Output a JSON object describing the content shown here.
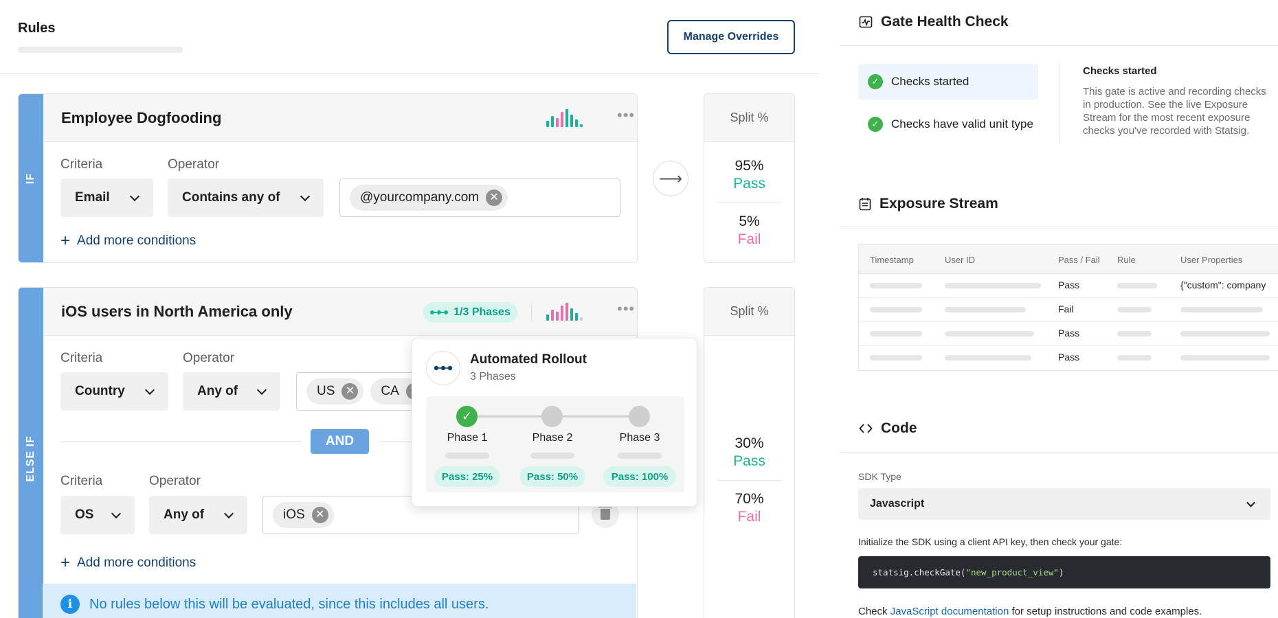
{
  "rules": {
    "title": "Rules",
    "manage_overrides_label": "Manage Overrides"
  },
  "rule1": {
    "strip_label": "IF",
    "name": "Employee Dogfooding",
    "criteria_label": "Criteria",
    "operator_label": "Operator",
    "criteria_value": "Email",
    "operator_value": "Contains any of",
    "values": [
      "@yourcompany.com"
    ],
    "add_conditions": "Add more conditions",
    "split": {
      "header": "Split %",
      "pass_percent": "95%",
      "pass_label": "Pass",
      "fail_percent": "5%",
      "fail_label": "Fail"
    }
  },
  "rule2": {
    "strip_label": "ELSE IF",
    "name": "iOS users in North America only",
    "phases_pill": "1/3 Phases",
    "condition1": {
      "criteria_label": "Criteria",
      "operator_label": "Operator",
      "criteria_value": "Country",
      "operator_value": "Any of",
      "values": [
        "US",
        "CA"
      ]
    },
    "and_label": "AND",
    "condition2": {
      "criteria_label": "Criteria",
      "operator_label": "Operator",
      "criteria_value": "OS",
      "operator_value": "Any of",
      "values": [
        "iOS"
      ]
    },
    "add_conditions": "Add more conditions",
    "info_text": "No rules below this will be evaluated, since this includes all users.",
    "split": {
      "header": "Split %",
      "pass_percent": "30%",
      "pass_label": "Pass",
      "fail_percent": "70%",
      "fail_label": "Fail"
    }
  },
  "rollout_popover": {
    "title": "Automated Rollout",
    "subtitle": "3 Phases",
    "completed_phases": 1,
    "phases": [
      {
        "name": "Phase 1",
        "pass": "Pass: 25%",
        "done": true
      },
      {
        "name": "Phase 2",
        "pass": "Pass: 50%",
        "done": false
      },
      {
        "name": "Phase 3",
        "pass": "Pass: 100%",
        "done": false
      }
    ]
  },
  "health": {
    "title": "Gate Health Check",
    "checks": [
      {
        "label": "Checks started",
        "active": true
      },
      {
        "label": "Checks have valid unit type",
        "active": false
      }
    ],
    "detail_title": "Checks started",
    "detail_desc": "This gate is active and recording checks in production. See the live Exposure Stream for the most recent exposure checks you've recorded with Statsig."
  },
  "exposure": {
    "title": "Exposure Stream",
    "columns": [
      "Timestamp",
      "User ID",
      "Pass / Fail",
      "Rule",
      "User Properties"
    ],
    "rows": [
      {
        "result": "Pass",
        "props": "{\"custom\": company"
      },
      {
        "result": "Fail",
        "props": ""
      },
      {
        "result": "Pass",
        "props": ""
      },
      {
        "result": "Pass",
        "props": ""
      }
    ]
  },
  "code": {
    "title": "Code",
    "sdk_label": "SDK Type",
    "sdk_value": "Javascript",
    "init_text": "Initialize the SDK using a client API key, then check your gate:",
    "code_fn": "statsig.checkGate(",
    "code_arg": "\"new_product_view\"",
    "code_end": ")",
    "doc_prefix": "Check ",
    "doc_link": "JavaScript documentation",
    "doc_suffix": " for setup instructions and code examples."
  },
  "colors": {
    "accent_blue": "#6aa4e0",
    "navy": "#14406f",
    "pass_green": "#16b597",
    "fail_pink": "#e86fae",
    "check_green": "#3fb24c"
  },
  "icons": {
    "health": "pulse-chart-icon",
    "exposure": "calendar-list-icon",
    "code": "code-brackets-icon",
    "more": "more-dots-icon",
    "arrow": "arrow-right-icon",
    "trash": "trash-icon",
    "info": "info-icon",
    "check": "check-circle-icon"
  }
}
